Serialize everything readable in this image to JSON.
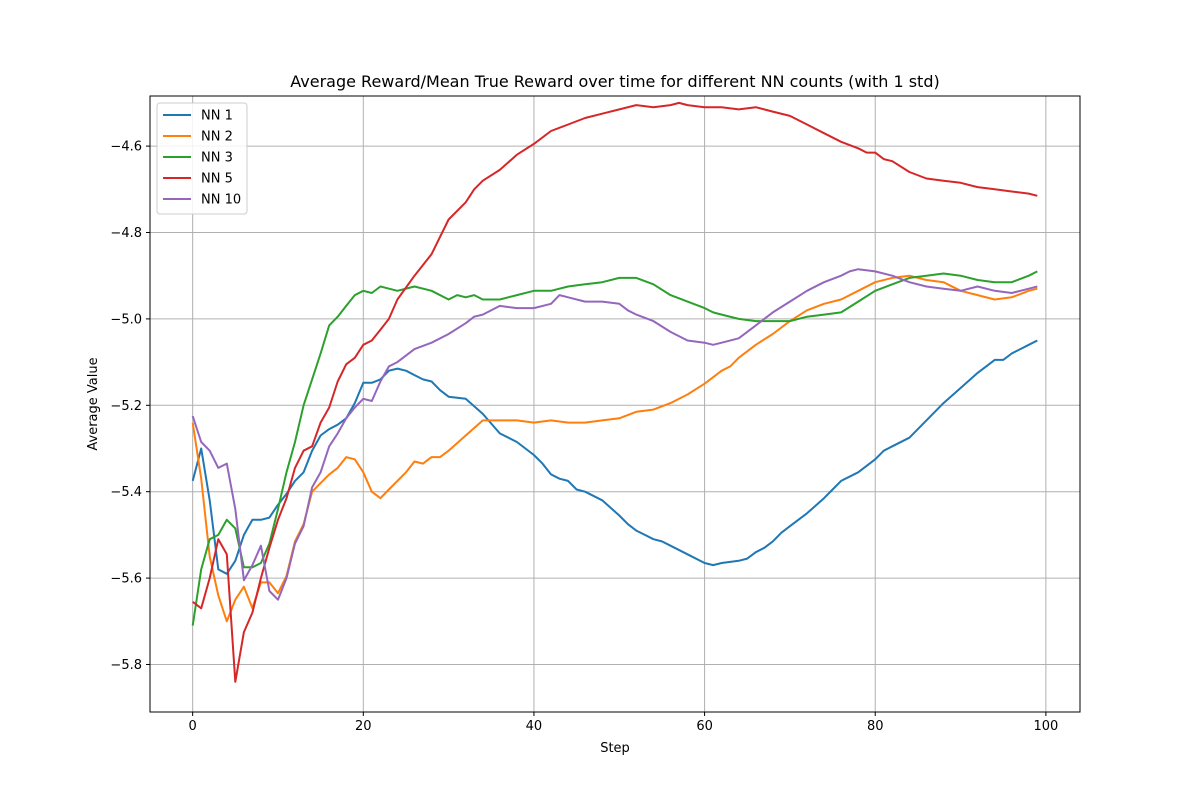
{
  "chart_data": {
    "type": "line",
    "title": "Average Reward/Mean True Reward over time for different NN counts (with 1 std)",
    "xlabel": "Step",
    "ylabel": "Average Value",
    "xlim": [
      -5,
      104
    ],
    "ylim": [
      -5.91,
      -4.484
    ],
    "xticks": [
      0,
      20,
      40,
      60,
      80,
      100
    ],
    "yticks": [
      -5.8,
      -5.6,
      -5.4,
      -5.2,
      -5.0,
      -4.8,
      -4.6
    ],
    "ytick_labels": [
      "−5.8",
      "−5.6",
      "−5.4",
      "−5.2",
      "−5.0",
      "−4.8",
      "−4.6"
    ],
    "grid": true,
    "legend_position": "top-left",
    "series": [
      {
        "name": "NN 1",
        "color": "#1f77b4",
        "x": [
          0,
          1,
          2,
          3,
          4,
          5,
          6,
          7,
          8,
          9,
          10,
          11,
          12,
          13,
          14,
          15,
          16,
          17,
          18,
          19,
          20,
          21,
          22,
          23,
          24,
          25,
          26,
          27,
          28,
          29,
          30,
          32,
          34,
          36,
          38,
          40,
          41,
          42,
          43,
          44,
          45,
          46,
          48,
          50,
          51,
          52,
          53,
          54,
          55,
          56,
          58,
          60,
          61,
          62,
          64,
          65,
          66,
          67,
          68,
          69,
          70,
          72,
          74,
          75,
          76,
          78,
          80,
          81,
          82,
          84,
          86,
          88,
          90,
          92,
          94,
          95,
          96,
          98,
          99
        ],
        "values": [
          -5.375,
          -5.3,
          -5.42,
          -5.58,
          -5.59,
          -5.56,
          -5.5,
          -5.465,
          -5.465,
          -5.46,
          -5.43,
          -5.405,
          -5.375,
          -5.355,
          -5.305,
          -5.27,
          -5.255,
          -5.245,
          -5.23,
          -5.195,
          -5.148,
          -5.148,
          -5.14,
          -5.12,
          -5.115,
          -5.12,
          -5.13,
          -5.14,
          -5.145,
          -5.165,
          -5.18,
          -5.185,
          -5.22,
          -5.265,
          -5.285,
          -5.315,
          -5.335,
          -5.36,
          -5.37,
          -5.375,
          -5.395,
          -5.4,
          -5.42,
          -5.455,
          -5.475,
          -5.49,
          -5.5,
          -5.51,
          -5.515,
          -5.525,
          -5.545,
          -5.565,
          -5.57,
          -5.565,
          -5.56,
          -5.555,
          -5.54,
          -5.53,
          -5.515,
          -5.495,
          -5.48,
          -5.45,
          -5.415,
          -5.395,
          -5.375,
          -5.355,
          -5.325,
          -5.305,
          -5.295,
          -5.275,
          -5.235,
          -5.195,
          -5.16,
          -5.125,
          -5.095,
          -5.095,
          -5.08,
          -5.06,
          -5.05
        ]
      },
      {
        "name": "NN 2",
        "color": "#ff7f0e",
        "x": [
          0,
          1,
          2,
          3,
          4,
          5,
          6,
          7,
          8,
          9,
          10,
          11,
          12,
          13,
          14,
          15,
          16,
          17,
          18,
          19,
          20,
          21,
          22,
          23,
          24,
          25,
          26,
          27,
          28,
          29,
          30,
          32,
          34,
          36,
          38,
          40,
          42,
          44,
          46,
          48,
          50,
          52,
          54,
          56,
          58,
          60,
          62,
          63,
          64,
          66,
          68,
          70,
          72,
          74,
          76,
          78,
          80,
          82,
          84,
          86,
          88,
          90,
          92,
          94,
          96,
          98,
          99
        ],
        "values": [
          -5.24,
          -5.37,
          -5.55,
          -5.64,
          -5.7,
          -5.65,
          -5.62,
          -5.67,
          -5.61,
          -5.61,
          -5.635,
          -5.595,
          -5.515,
          -5.475,
          -5.4,
          -5.38,
          -5.36,
          -5.345,
          -5.32,
          -5.325,
          -5.355,
          -5.4,
          -5.415,
          -5.395,
          -5.375,
          -5.355,
          -5.33,
          -5.335,
          -5.32,
          -5.32,
          -5.305,
          -5.27,
          -5.235,
          -5.235,
          -5.235,
          -5.24,
          -5.235,
          -5.24,
          -5.24,
          -5.235,
          -5.23,
          -5.215,
          -5.21,
          -5.195,
          -5.175,
          -5.15,
          -5.12,
          -5.11,
          -5.09,
          -5.06,
          -5.035,
          -5.005,
          -4.98,
          -4.965,
          -4.955,
          -4.935,
          -4.915,
          -4.905,
          -4.9,
          -4.91,
          -4.915,
          -4.935,
          -4.945,
          -4.955,
          -4.95,
          -4.935,
          -4.93
        ]
      },
      {
        "name": "NN 3",
        "color": "#2ca02c",
        "x": [
          0,
          1,
          2,
          3,
          4,
          5,
          6,
          7,
          8,
          9,
          10,
          11,
          12,
          13,
          14,
          15,
          16,
          17,
          18,
          19,
          20,
          21,
          22,
          24,
          26,
          28,
          30,
          31,
          32,
          33,
          34,
          36,
          38,
          40,
          42,
          44,
          46,
          48,
          50,
          52,
          54,
          56,
          58,
          60,
          61,
          62,
          64,
          66,
          68,
          70,
          72,
          74,
          76,
          78,
          80,
          82,
          84,
          86,
          88,
          90,
          92,
          94,
          96,
          98,
          99
        ],
        "values": [
          -5.71,
          -5.58,
          -5.51,
          -5.5,
          -5.465,
          -5.485,
          -5.575,
          -5.575,
          -5.565,
          -5.52,
          -5.44,
          -5.355,
          -5.285,
          -5.2,
          -5.14,
          -5.08,
          -5.015,
          -4.995,
          -4.97,
          -4.945,
          -4.935,
          -4.94,
          -4.925,
          -4.935,
          -4.925,
          -4.935,
          -4.955,
          -4.945,
          -4.95,
          -4.945,
          -4.955,
          -4.955,
          -4.945,
          -4.935,
          -4.935,
          -4.925,
          -4.92,
          -4.915,
          -4.905,
          -4.905,
          -4.92,
          -4.945,
          -4.96,
          -4.975,
          -4.985,
          -4.99,
          -5.0,
          -5.005,
          -5.005,
          -5.005,
          -4.995,
          -4.99,
          -4.985,
          -4.96,
          -4.935,
          -4.92,
          -4.905,
          -4.9,
          -4.895,
          -4.9,
          -4.91,
          -4.915,
          -4.915,
          -4.9,
          -4.89
        ]
      },
      {
        "name": "NN 5",
        "color": "#d62728",
        "x": [
          0,
          1,
          2,
          3,
          4,
          5,
          6,
          7,
          8,
          9,
          10,
          11,
          12,
          13,
          14,
          15,
          16,
          17,
          18,
          19,
          20,
          21,
          22,
          23,
          24,
          26,
          28,
          30,
          32,
          33,
          34,
          36,
          38,
          40,
          42,
          44,
          46,
          48,
          50,
          52,
          54,
          56,
          57,
          58,
          60,
          62,
          64,
          66,
          68,
          70,
          72,
          74,
          76,
          78,
          79,
          80,
          81,
          82,
          84,
          86,
          88,
          90,
          92,
          94,
          96,
          98,
          99
        ],
        "values": [
          -5.655,
          -5.67,
          -5.6,
          -5.51,
          -5.545,
          -5.84,
          -5.725,
          -5.68,
          -5.6,
          -5.53,
          -5.465,
          -5.415,
          -5.345,
          -5.305,
          -5.295,
          -5.24,
          -5.205,
          -5.145,
          -5.105,
          -5.09,
          -5.06,
          -5.05,
          -5.025,
          -5.0,
          -4.955,
          -4.9,
          -4.85,
          -4.77,
          -4.73,
          -4.7,
          -4.68,
          -4.655,
          -4.62,
          -4.595,
          -4.565,
          -4.55,
          -4.535,
          -4.525,
          -4.515,
          -4.505,
          -4.51,
          -4.505,
          -4.5,
          -4.505,
          -4.51,
          -4.51,
          -4.515,
          -4.51,
          -4.52,
          -4.53,
          -4.55,
          -4.57,
          -4.59,
          -4.605,
          -4.615,
          -4.615,
          -4.63,
          -4.635,
          -4.66,
          -4.675,
          -4.68,
          -4.685,
          -4.695,
          -4.7,
          -4.705,
          -4.71,
          -4.715
        ]
      },
      {
        "name": "NN 10",
        "color": "#9467bd",
        "x": [
          0,
          1,
          2,
          3,
          4,
          5,
          6,
          7,
          8,
          9,
          10,
          11,
          12,
          13,
          14,
          15,
          16,
          17,
          18,
          19,
          20,
          21,
          22,
          23,
          24,
          26,
          28,
          30,
          32,
          33,
          34,
          36,
          38,
          40,
          42,
          43,
          44,
          46,
          48,
          50,
          51,
          52,
          54,
          56,
          58,
          60,
          61,
          62,
          64,
          65,
          66,
          68,
          70,
          72,
          74,
          76,
          77,
          78,
          80,
          82,
          84,
          86,
          88,
          90,
          92,
          94,
          96,
          98,
          99
        ],
        "values": [
          -5.225,
          -5.285,
          -5.305,
          -5.345,
          -5.335,
          -5.44,
          -5.605,
          -5.57,
          -5.525,
          -5.63,
          -5.65,
          -5.6,
          -5.52,
          -5.48,
          -5.39,
          -5.355,
          -5.295,
          -5.265,
          -5.23,
          -5.205,
          -5.185,
          -5.19,
          -5.145,
          -5.11,
          -5.1,
          -5.07,
          -5.055,
          -5.035,
          -5.01,
          -4.995,
          -4.99,
          -4.97,
          -4.975,
          -4.975,
          -4.965,
          -4.945,
          -4.95,
          -4.96,
          -4.96,
          -4.965,
          -4.98,
          -4.99,
          -5.005,
          -5.03,
          -5.05,
          -5.055,
          -5.06,
          -5.055,
          -5.045,
          -5.03,
          -5.015,
          -4.985,
          -4.96,
          -4.935,
          -4.915,
          -4.9,
          -4.89,
          -4.885,
          -4.89,
          -4.9,
          -4.915,
          -4.925,
          -4.93,
          -4.935,
          -4.925,
          -4.935,
          -4.94,
          -4.93,
          -4.925
        ]
      }
    ]
  }
}
